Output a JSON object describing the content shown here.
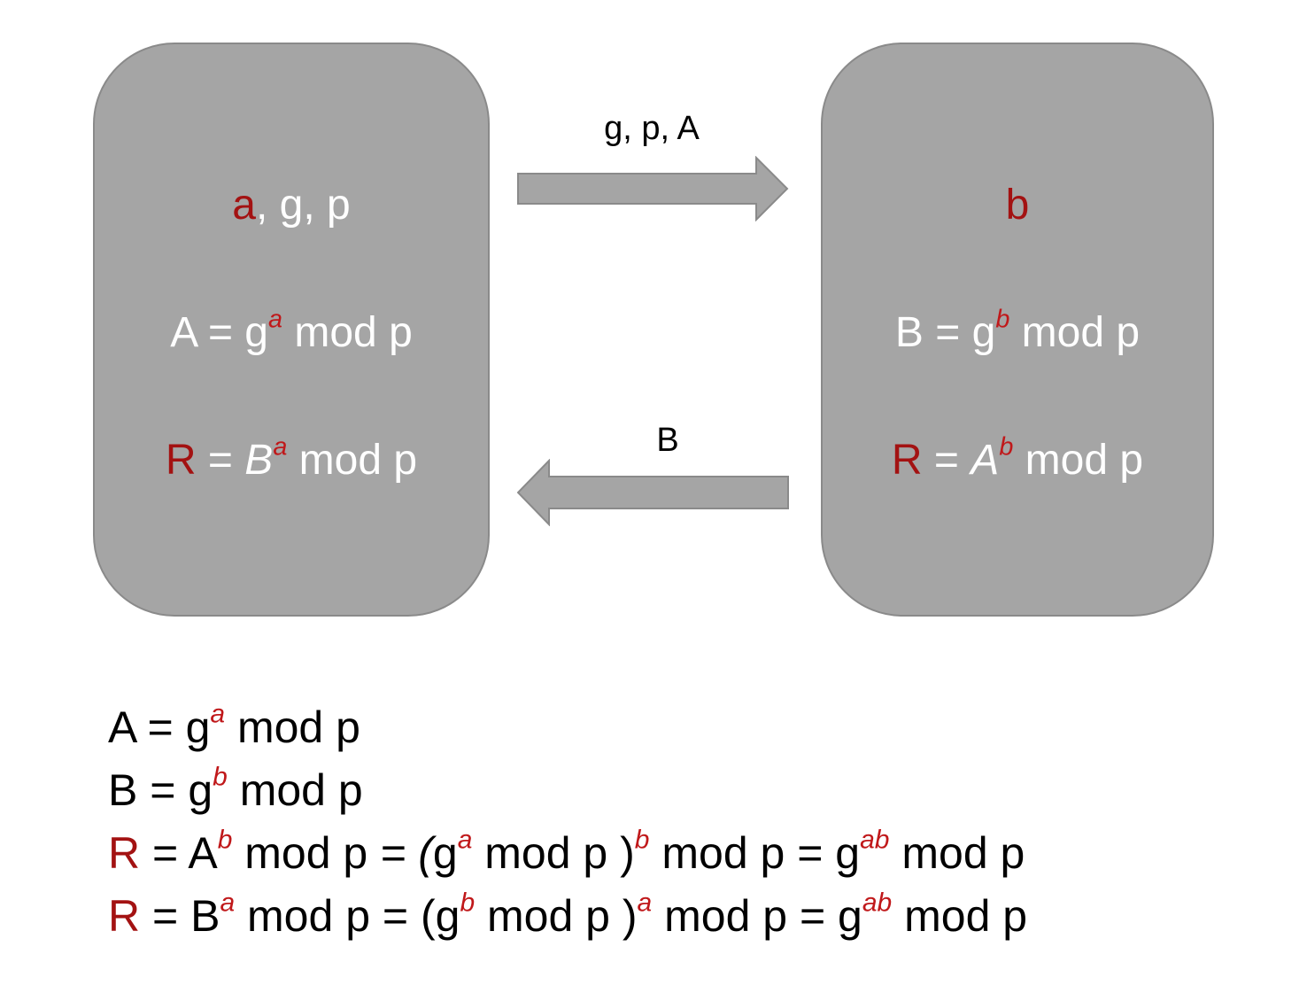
{
  "left_party": {
    "line1": {
      "secret": "a",
      "rest": ", g, p"
    },
    "line2": {
      "lhs": "A = g",
      "exp": "a",
      "rhs": " mod p"
    },
    "line3": {
      "var": "R",
      "eq": " = ",
      "base": "B",
      "exp": "a",
      "rhs": " mod p"
    }
  },
  "right_party": {
    "line1": {
      "secret": "b"
    },
    "line2": {
      "lhs": "B =  g",
      "exp": "b",
      "rhs": " mod p"
    },
    "line3": {
      "var": "R",
      "eq": " = ",
      "base": "A",
      "exp": "b",
      "rhs": " mod p"
    }
  },
  "arrows": {
    "top_label": "g, p, A",
    "bottom_label": "B"
  },
  "equations": {
    "eq1": {
      "lhs": "A = g",
      "exp": "a",
      "rhs": " mod p"
    },
    "eq2": {
      "lhs": "B =  g",
      "exp": "b",
      "rhs": " mod p"
    },
    "eq3": {
      "var": "R",
      "p1": " = A",
      "e1": "b",
      "p2": " mod p ",
      "p3": "= (",
      "p4": "g",
      "e2": "a",
      "p5": " mod p )",
      "e3": "b",
      "p6": " mod p = g",
      "e4": "ab",
      "p7": " mod p"
    },
    "eq4": {
      "var": "R",
      "p1": " = B",
      "e1": "a",
      "p2": "  mod p = (g",
      "e2": "b",
      "p3": " mod p )",
      "e3": "a",
      "p4": " mod p = g",
      "e4": "ab",
      "p5": " mod p"
    }
  },
  "colors": {
    "box": "#a5a5a5",
    "secret": "#a31212",
    "arrow": "#a5a5a5"
  }
}
